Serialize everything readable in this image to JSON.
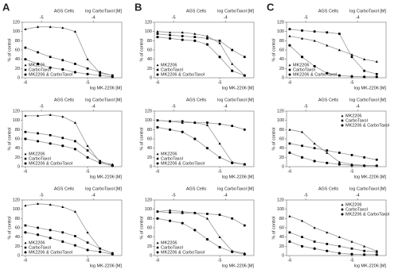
{
  "panel_labels": [
    "A",
    "B",
    "C"
  ],
  "chart_data": [
    {
      "type": "line",
      "title": "AGS Cells",
      "x_label": "log MK-2206 [M]",
      "x2_label": "log CarboTaxol [M]",
      "y_label": "% of control",
      "x": [
        -6,
        -5.8,
        -5.6,
        -5.4,
        -5.2,
        -5,
        -4.8,
        -4.6
      ],
      "xlim": [
        -6.05,
        -4.45
      ],
      "xticks": [
        -6,
        -5
      ],
      "x2lim": [
        -5.37,
        -3.45
      ],
      "x2ticks": [
        -5,
        -4
      ],
      "ylim": [
        0,
        120
      ],
      "yticks": [
        0,
        20,
        40,
        60,
        80,
        100,
        120
      ],
      "legend": "lower left",
      "fit_color": "#999999",
      "series": [
        {
          "name": "MK2206",
          "marker": "triangle",
          "color": "#000000",
          "values": [
            105,
            110,
            110,
            108,
            100,
            40,
            10,
            5
          ]
        },
        {
          "name": "CarboTaxol",
          "marker": "square",
          "color": "#000000",
          "values": [
            65,
            55,
            45,
            38,
            30,
            20,
            12,
            5
          ]
        },
        {
          "name": "MK2206 & CarboTaxol",
          "marker": "circle",
          "color": "#000000",
          "values": [
            40,
            30,
            22,
            18,
            12,
            8,
            5,
            2
          ]
        }
      ]
    },
    {
      "type": "line",
      "title": "AGS Cells",
      "x_label": "log MK-2206 [M]",
      "x2_label": "log CarboTaxol [M]",
      "y_label": "% of control",
      "x": [
        -6,
        -5.8,
        -5.6,
        -5.4,
        -5.2,
        -5,
        -4.8,
        -4.6
      ],
      "xlim": [
        -6.05,
        -4.45
      ],
      "xticks": [
        -6,
        -5
      ],
      "x2lim": [
        -5.37,
        -3.45
      ],
      "x2ticks": [
        -5,
        -4
      ],
      "ylim": [
        0,
        120
      ],
      "yticks": [
        0,
        20,
        40,
        60,
        80,
        100,
        120
      ],
      "legend": "lower left",
      "fit_color": "#999999",
      "series": [
        {
          "name": "MK2206",
          "marker": "triangle",
          "color": "#000000",
          "values": [
            110,
            110,
            112,
            108,
            95,
            45,
            10,
            5
          ]
        },
        {
          "name": "CarboTaxol",
          "marker": "square",
          "color": "#000000",
          "values": [
            75,
            72,
            68,
            62,
            55,
            35,
            12,
            3
          ]
        },
        {
          "name": "MK2206 & CarboTaxol",
          "marker": "circle",
          "color": "#000000",
          "values": [
            60,
            55,
            50,
            45,
            38,
            20,
            8,
            2
          ]
        }
      ]
    },
    {
      "type": "line",
      "title": "AGS Cells",
      "x_label": "log MK-2206 [M]",
      "x2_label": "log CarboTaxol [M]",
      "y_label": "% of control",
      "x": [
        -6,
        -5.8,
        -5.6,
        -5.4,
        -5.2,
        -5,
        -4.8,
        -4.6
      ],
      "xlim": [
        -6.05,
        -4.45
      ],
      "xticks": [
        -6,
        -5
      ],
      "x2lim": [
        -5.37,
        -3.45
      ],
      "x2ticks": [
        -5,
        -4
      ],
      "ylim": [
        0,
        120
      ],
      "yticks": [
        0,
        20,
        40,
        60,
        80,
        100,
        120
      ],
      "legend": "lower left",
      "fit_color": "#999999",
      "series": [
        {
          "name": "MK2206",
          "marker": "triangle",
          "color": "#000000",
          "values": [
            108,
            112,
            110,
            105,
            95,
            50,
            15,
            5
          ]
        },
        {
          "name": "CarboTaxol",
          "marker": "square",
          "color": "#000000",
          "values": [
            65,
            60,
            55,
            50,
            42,
            28,
            15,
            5
          ]
        },
        {
          "name": "MK2206 & CarboTaxol",
          "marker": "circle",
          "color": "#000000",
          "values": [
            50,
            45,
            38,
            30,
            22,
            12,
            8,
            3
          ]
        }
      ]
    },
    {
      "type": "line",
      "title": "AGS Cells",
      "x_label": "log MK-2206 [M]",
      "x2_label": "log CarboTaxol [M]",
      "y_label": "% of control",
      "x": [
        -6,
        -5.8,
        -5.6,
        -5.4,
        -5.2,
        -5,
        -4.8,
        -4.6
      ],
      "xlim": [
        -6.05,
        -4.45
      ],
      "xticks": [
        -6,
        -5
      ],
      "x2lim": [
        -5.37,
        -3.45
      ],
      "x2ticks": [
        -5,
        -4
      ],
      "ylim": [
        0,
        120
      ],
      "yticks": [
        0,
        20,
        40,
        60,
        80,
        100,
        120
      ],
      "legend": "lower left",
      "fit_color": "#999999",
      "series": [
        {
          "name": "MK2206",
          "marker": "triangle",
          "color": "#000000",
          "values": [
            100,
            98,
            98,
            95,
            90,
            75,
            30,
            5
          ]
        },
        {
          "name": "CarboTaxol",
          "marker": "square",
          "color": "#000000",
          "values": [
            95,
            92,
            90,
            88,
            85,
            80,
            60,
            45
          ]
        },
        {
          "name": "MK2206 & CarboTaxol",
          "marker": "circle",
          "color": "#000000",
          "values": [
            88,
            85,
            82,
            80,
            72,
            45,
            15,
            5
          ]
        }
      ]
    },
    {
      "type": "line",
      "title": "AGS Cells",
      "x_label": "log MK-2206 [M]",
      "x2_label": "log CarboTaxol [M]",
      "y_label": "% of control",
      "x": [
        -6,
        -5.8,
        -5.6,
        -5.4,
        -5.2,
        -5,
        -4.8,
        -4.6
      ],
      "xlim": [
        -6.05,
        -4.45
      ],
      "xticks": [
        -6,
        -5
      ],
      "x2lim": [
        -5.37,
        -3.45
      ],
      "x2ticks": [
        -5,
        -4
      ],
      "ylim": [
        0,
        120
      ],
      "yticks": [
        0,
        20,
        40,
        60,
        80,
        100,
        120
      ],
      "legend": "lower left",
      "fit_color": "#999999",
      "series": [
        {
          "name": "MK2206",
          "marker": "triangle",
          "color": "#000000",
          "values": [
            100,
            98,
            95,
            95,
            90,
            50,
            10,
            5
          ]
        },
        {
          "name": "CarboTaxol",
          "marker": "square",
          "color": "#000000",
          "values": [
            100,
            98,
            98,
            95,
            95,
            92,
            88,
            80
          ]
        },
        {
          "name": "MK2206 & CarboTaxol",
          "marker": "circle",
          "color": "#000000",
          "values": [
            85,
            80,
            75,
            60,
            40,
            20,
            8,
            5
          ]
        }
      ]
    },
    {
      "type": "line",
      "title": "AGS Cells",
      "x_label": "log MK-2206 [M]",
      "x2_label": "log CarboTaxol [M]",
      "y_label": "% of control",
      "x": [
        -6,
        -5.8,
        -5.6,
        -5.4,
        -5.2,
        -5,
        -4.8,
        -4.6
      ],
      "xlim": [
        -6.05,
        -4.45
      ],
      "xticks": [
        -6,
        -5
      ],
      "x2lim": [
        -5.37,
        -3.45
      ],
      "x2ticks": [
        -5,
        -4
      ],
      "ylim": [
        0,
        120
      ],
      "yticks": [
        0,
        20,
        40,
        60,
        80,
        100,
        120
      ],
      "legend": "lower left",
      "fit_color": "#999999",
      "series": [
        {
          "name": "MK2206",
          "marker": "triangle",
          "color": "#000000",
          "values": [
            95,
            98,
            95,
            92,
            80,
            40,
            10,
            5
          ]
        },
        {
          "name": "CarboTaxol",
          "marker": "square",
          "color": "#000000",
          "values": [
            95,
            93,
            92,
            92,
            90,
            88,
            80,
            65
          ]
        },
        {
          "name": "MK2206 & CarboTaxol",
          "marker": "circle",
          "color": "#000000",
          "values": [
            80,
            75,
            70,
            55,
            35,
            18,
            8,
            3
          ]
        }
      ]
    },
    {
      "type": "line",
      "title": "AGS Cells",
      "x_label": "log MK-2206 [M]",
      "x2_label": "log CarboTaxol [M]",
      "y_label": "% of control",
      "x": [
        -6,
        -5.8,
        -5.6,
        -5.4,
        -5.2,
        -5,
        -4.8,
        -4.6
      ],
      "xlim": [
        -6.05,
        -4.45
      ],
      "xticks": [
        -6,
        -5
      ],
      "x2lim": [
        -5.37,
        -3.45
      ],
      "x2ticks": [
        -5,
        -4
      ],
      "ylim": [
        0,
        120
      ],
      "yticks": [
        0,
        20,
        40,
        60,
        80,
        100,
        120
      ],
      "legend": "lower left",
      "fit_color": "#999999",
      "series": [
        {
          "name": "MK2206",
          "marker": "triangle",
          "color": "#000000",
          "values": [
            90,
            85,
            80,
            70,
            60,
            50,
            40,
            35
          ]
        },
        {
          "name": "CarboTaxol",
          "marker": "square",
          "color": "#000000",
          "values": [
            105,
            102,
            100,
            98,
            95,
            45,
            15,
            8
          ]
        },
        {
          "name": "MK2206 & CarboTaxol",
          "marker": "circle",
          "color": "#000000",
          "values": [
            70,
            45,
            25,
            10,
            5,
            3,
            2,
            2
          ]
        }
      ]
    },
    {
      "type": "line",
      "title": "AGS Cells",
      "x_label": "log MK-2206 [M]",
      "x2_label": "log CarboTaxol [M]",
      "y_label": "% of control",
      "x": [
        -6,
        -5.8,
        -5.6,
        -5.4,
        -5.2,
        -5,
        -4.8,
        -4.6
      ],
      "xlim": [
        -6.05,
        -4.45
      ],
      "xticks": [
        -6,
        -5
      ],
      "x2lim": [
        -5.37,
        -3.45
      ],
      "x2ticks": [
        -5,
        -4
      ],
      "ylim": [
        0,
        120
      ],
      "yticks": [
        0,
        20,
        40,
        60,
        80,
        100,
        120
      ],
      "legend": "upper right",
      "fit_color": "#999999",
      "series": [
        {
          "name": "MK2206",
          "marker": "triangle",
          "color": "#000000",
          "values": [
            80,
            75,
            50,
            30,
            10,
            5,
            3,
            2
          ]
        },
        {
          "name": "CarboTaxol",
          "marker": "square",
          "color": "#000000",
          "values": [
            50,
            45,
            40,
            35,
            30,
            25,
            20,
            15
          ]
        },
        {
          "name": "MK2206 & CarboTaxol",
          "marker": "circle",
          "color": "#000000",
          "values": [
            30,
            20,
            12,
            8,
            5,
            3,
            2,
            2
          ]
        }
      ]
    },
    {
      "type": "line",
      "title": "AGS Cells",
      "x_label": "log MK-2206 [M]",
      "x2_label": "log CarboTaxol [M]",
      "y_label": "% of control",
      "x": [
        -6,
        -5.8,
        -5.6,
        -5.4,
        -5.2,
        -5,
        -4.8,
        -4.6
      ],
      "xlim": [
        -6.05,
        -4.45
      ],
      "xticks": [
        -6,
        -5
      ],
      "x2lim": [
        -5.37,
        -3.45
      ],
      "x2ticks": [
        -5,
        -4
      ],
      "ylim": [
        0,
        120
      ],
      "yticks": [
        0,
        20,
        40,
        60,
        80,
        100,
        120
      ],
      "legend": "upper right",
      "fit_color": "#999999",
      "series": [
        {
          "name": "MK2206",
          "marker": "triangle",
          "color": "#000000",
          "values": [
            85,
            75,
            60,
            50,
            40,
            30,
            20,
            10
          ]
        },
        {
          "name": "CarboTaxol",
          "marker": "square",
          "color": "#000000",
          "values": [
            50,
            40,
            30,
            25,
            20,
            15,
            10,
            8
          ]
        },
        {
          "name": "MK2206 & CarboTaxol",
          "marker": "circle",
          "color": "#000000",
          "values": [
            30,
            20,
            15,
            10,
            5,
            3,
            2,
            2
          ]
        }
      ]
    }
  ]
}
